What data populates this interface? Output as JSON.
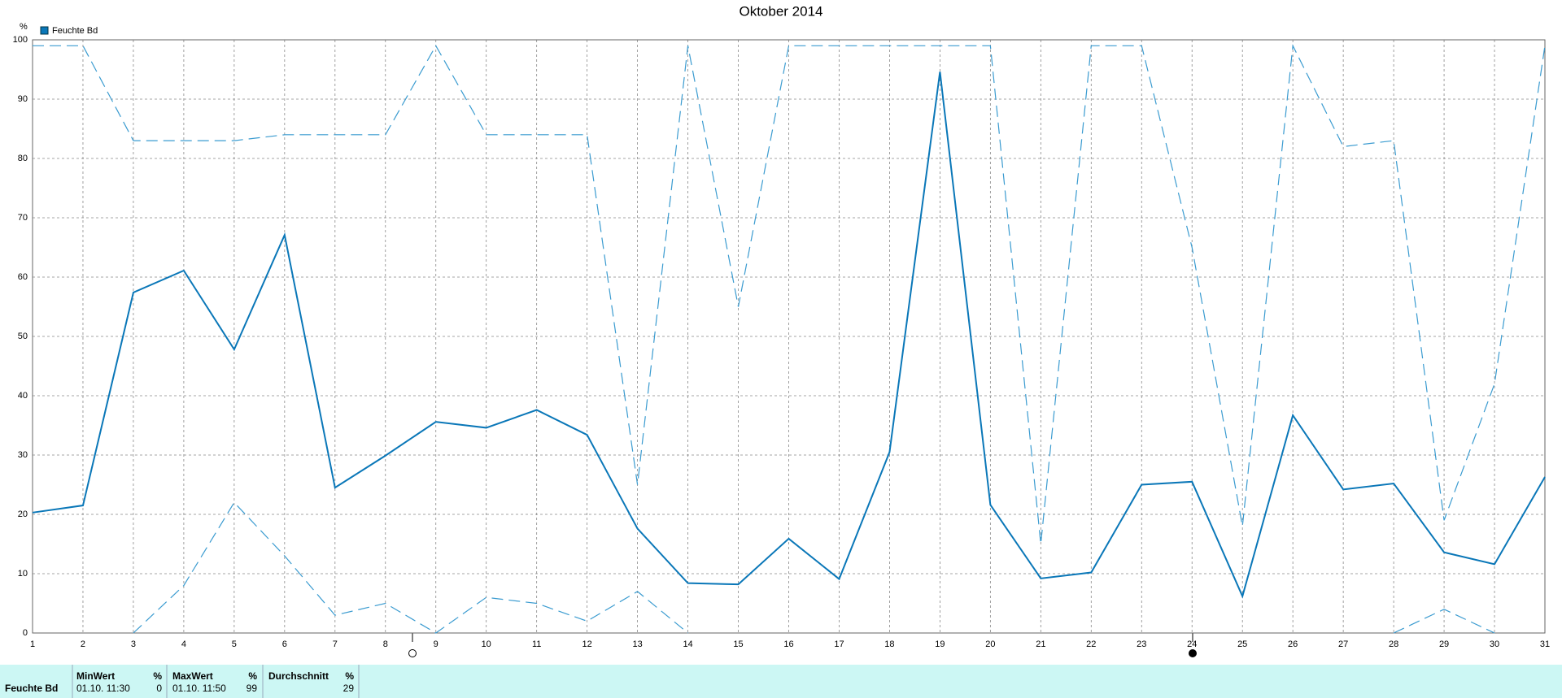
{
  "chart_data": {
    "type": "line",
    "title": "Oktober 2014",
    "ylabel": "%",
    "x": [
      1,
      2,
      3,
      4,
      5,
      6,
      7,
      8,
      9,
      10,
      11,
      12,
      13,
      14,
      15,
      16,
      17,
      18,
      19,
      20,
      21,
      22,
      23,
      24,
      25,
      26,
      27,
      28,
      29,
      30,
      31
    ],
    "xlim": [
      1,
      31
    ],
    "xticks": [
      1,
      2,
      3,
      4,
      5,
      6,
      7,
      8,
      9,
      10,
      11,
      12,
      13,
      14,
      15,
      16,
      17,
      18,
      19,
      20,
      21,
      22,
      23,
      24,
      25,
      26,
      27,
      28,
      29,
      30,
      31
    ],
    "ylim": [
      0,
      100
    ],
    "yticks": [
      0,
      10,
      20,
      30,
      40,
      50,
      60,
      70,
      80,
      90,
      100
    ],
    "grid": true,
    "series": [
      {
        "name": "Feuchte Bd",
        "color": "#0a77b8",
        "style": "solid",
        "values": [
          20.3,
          21.5,
          57.4,
          61.1,
          47.8,
          67.1,
          24.5,
          29.9,
          35.6,
          34.6,
          37.6,
          33.4,
          17.6,
          8.4,
          8.2,
          15.9,
          9.1,
          30.5,
          94.6,
          21.6,
          9.2,
          10.2,
          25.0,
          25.5,
          6.2,
          36.7,
          24.2,
          25.2,
          13.6,
          11.6,
          26.3
        ]
      },
      {
        "color": "#3a9bd0",
        "style": "dashed",
        "values": [
          99,
          99,
          83,
          83,
          83,
          84,
          84,
          84,
          99,
          84,
          84,
          84,
          25,
          99,
          55,
          99,
          99,
          99,
          99,
          99,
          15,
          99,
          99,
          65,
          18,
          99,
          82,
          83,
          19,
          42,
          99
        ]
      },
      {
        "color": "#3a9bd0",
        "style": "dashed",
        "values": [
          null,
          null,
          0,
          8,
          22,
          13,
          3,
          5,
          0,
          6,
          5,
          2,
          7,
          0,
          null,
          null,
          null,
          null,
          null,
          null,
          null,
          null,
          null,
          null,
          null,
          null,
          null,
          0,
          4,
          0,
          null
        ]
      }
    ]
  },
  "table": {
    "header": [
      [
        "MinWert",
        "%"
      ],
      [
        "MaxWert",
        "%"
      ],
      [
        "Durchschnitt",
        "%"
      ]
    ],
    "row_label": "Feuchte Bd",
    "row": [
      {
        "time": "01.10. 11:30",
        "value": "0"
      },
      {
        "time": "01.10. 11:50",
        "value": "99"
      },
      {
        "value": "29"
      }
    ]
  }
}
